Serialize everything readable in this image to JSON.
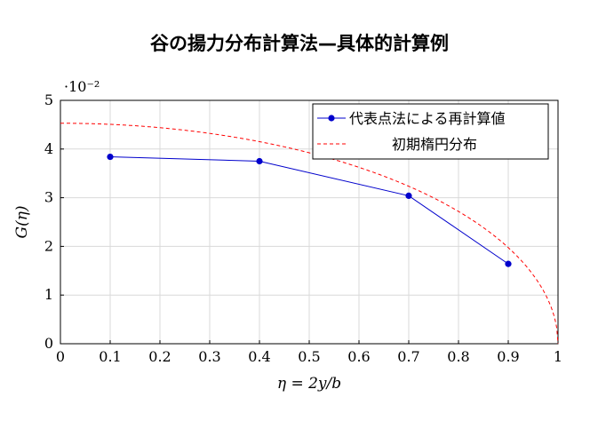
{
  "chart_data": {
    "type": "line",
    "title": "谷の揚力分布計算法—具体的計算例",
    "xlabel": "η = 2y/b",
    "ylabel": "G(η)",
    "y_multiplier": "·10⁻²",
    "xlim": [
      0,
      1
    ],
    "ylim": [
      0,
      5
    ],
    "xticks": [
      "0",
      "0.1",
      "0.2",
      "0.3",
      "0.4",
      "0.5",
      "0.6",
      "0.7",
      "0.8",
      "0.9",
      "1"
    ],
    "yticks": [
      "0",
      "1",
      "2",
      "3",
      "4",
      "5"
    ],
    "grid": true,
    "legend_position": "top-right",
    "series": [
      {
        "name": "代表点法による再計算値",
        "style": "solid-with-markers",
        "color": "#0000cc",
        "x": [
          0.1,
          0.4,
          0.7,
          0.9
        ],
        "y": [
          3.84,
          3.75,
          3.04,
          1.64
        ]
      },
      {
        "name": "初期楕円分布",
        "style": "dashed",
        "color": "#ff0000",
        "function": "elliptic",
        "G0": 4.53
      }
    ]
  }
}
